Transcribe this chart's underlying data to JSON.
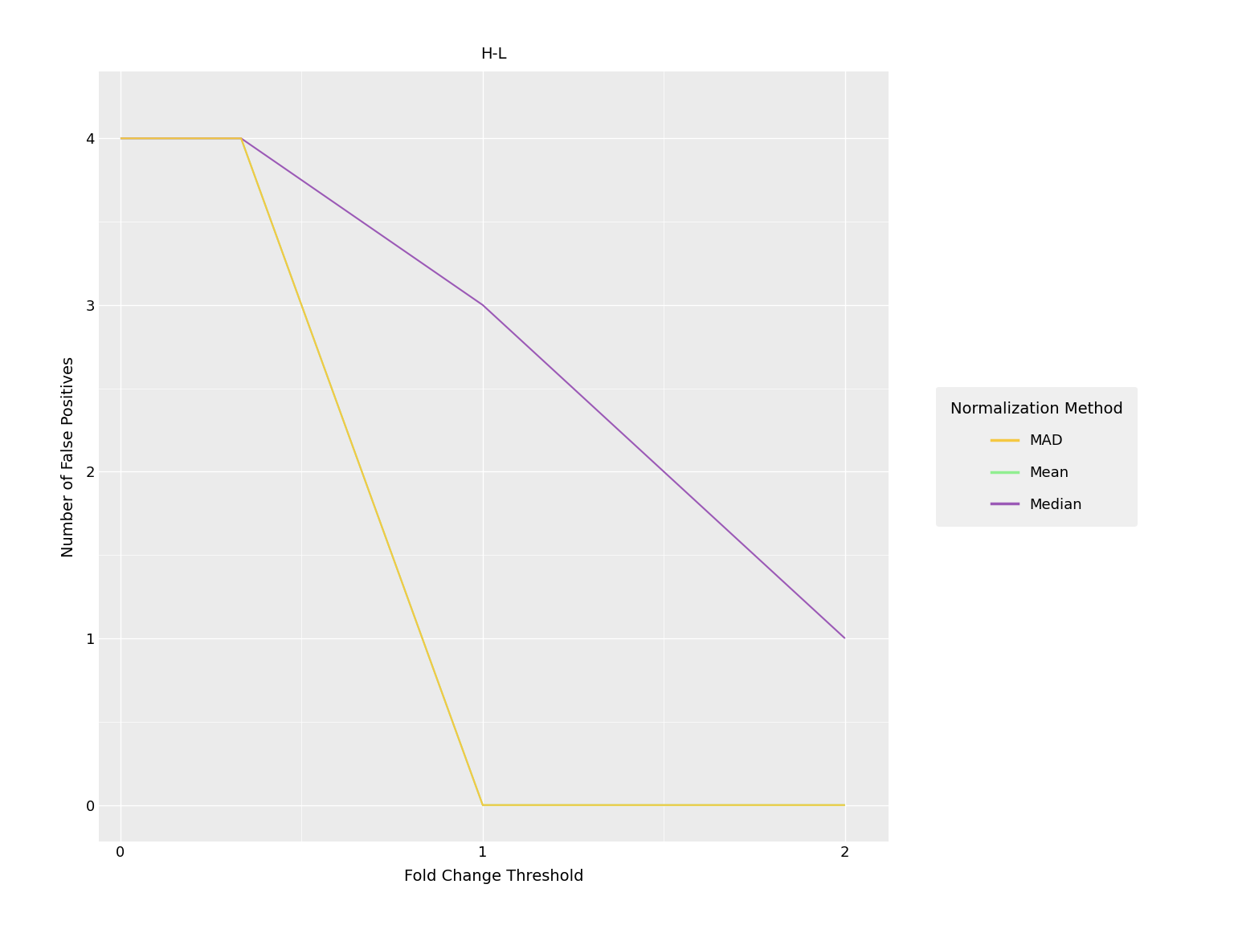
{
  "title": "H-L",
  "xlabel": "Fold Change Threshold",
  "ylabel": "Number of False Positives",
  "background_color": "white",
  "panel_background": "#EBEBEB",
  "title_strip_color": "#D9D9D9",
  "grid_color": "#FFFFFF",
  "lines": {
    "MAD": {
      "x": [
        0,
        0.333,
        1.0,
        2.0
      ],
      "y": [
        4,
        4,
        0,
        0
      ],
      "color": "#F5C842",
      "linewidth": 1.5
    },
    "Mean": {
      "x": [
        0,
        0.333,
        1.0,
        2.0
      ],
      "y": [
        4,
        4,
        0,
        0
      ],
      "color": "#90EE90",
      "linewidth": 1.5
    },
    "Median": {
      "x": [
        0,
        0.333,
        1.0,
        2.0
      ],
      "y": [
        4,
        4,
        3,
        1
      ],
      "color": "#9B59B6",
      "linewidth": 1.5
    }
  },
  "xlim": [
    -0.06,
    2.12
  ],
  "ylim": [
    -0.22,
    4.4
  ],
  "xticks": [
    0,
    1,
    2
  ],
  "yticks": [
    0,
    1,
    2,
    3,
    4
  ],
  "legend_title": "Normalization Method",
  "legend_items": [
    "MAD",
    "Mean",
    "Median"
  ],
  "legend_colors": [
    "#F5C842",
    "#90EE90",
    "#9B59B6"
  ],
  "title_fontsize": 14,
  "axis_label_fontsize": 14,
  "tick_fontsize": 13,
  "legend_fontsize": 13,
  "legend_title_fontsize": 14
}
